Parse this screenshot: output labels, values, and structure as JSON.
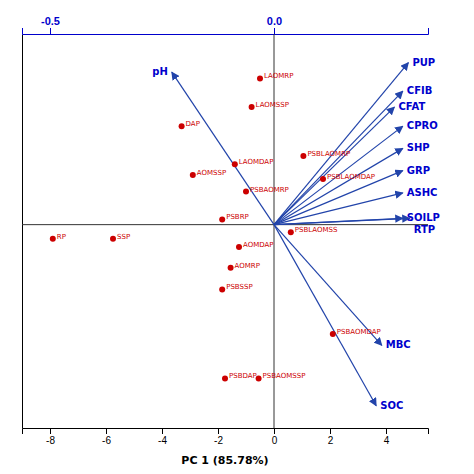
{
  "chart_data": {
    "type": "biplot",
    "xlabel": "PC 1 (85.78%)",
    "xlim": [
      -9,
      5.5
    ],
    "xticks": [
      -8,
      -6,
      -4,
      -2,
      0,
      2,
      4
    ],
    "ylim": [
      -3.2,
      3.0
    ],
    "tick_labels": "x",
    "x2lim": [
      -0.5625,
      0.34375
    ],
    "x2ticks": [
      -0.5,
      {
        "value": 0,
        "label": "0.0"
      }
    ],
    "x2color": "#0000cc",
    "scores": {
      "color": "#cc0000",
      "labels": [
        "LAOMRP",
        "LAOMSSP",
        "DAP",
        "LAOMDAP",
        "AOMSSP",
        "PSBAOMRP",
        "PSBRP",
        "PSBLAOMRP",
        "PSBLAOMDAP",
        "PSBLAOMSS",
        "RP",
        "SSP",
        "AOMDAP",
        "AOMRP",
        "PSBSSP",
        "PSBAOMDAP",
        "PSBDAP",
        "PSBAOMSSP"
      ],
      "x": [
        -0.5,
        -0.8,
        -3.3,
        -1.4,
        -2.9,
        -1.0,
        -1.85,
        1.05,
        1.75,
        0.6,
        -7.9,
        -5.75,
        -1.25,
        -1.55,
        -1.85,
        2.1,
        -1.75,
        -0.55
      ],
      "y": [
        2.3,
        1.85,
        1.55,
        0.95,
        0.78,
        0.52,
        0.08,
        1.08,
        0.72,
        -0.12,
        -0.22,
        -0.22,
        -0.35,
        -0.68,
        -1.02,
        -1.72,
        -2.42,
        -2.42
      ]
    },
    "loadings": {
      "color": "#0000cc",
      "arrow_color": "#2244aa",
      "labels": [
        "PUP",
        "CFIB",
        "CFAT",
        "CPRO",
        "SHP",
        "GRP",
        "ASHC",
        "SOILP",
        "RTP",
        "MBC",
        "SOC",
        "pH"
      ],
      "x": [
        4.8,
        4.6,
        4.3,
        4.6,
        4.6,
        4.6,
        4.6,
        4.6,
        4.85,
        3.85,
        3.65,
        -3.65
      ],
      "y": [
        2.55,
        2.1,
        1.85,
        1.55,
        1.2,
        0.85,
        0.5,
        0.1,
        0.1,
        -1.9,
        -2.85,
        2.4
      ]
    }
  }
}
